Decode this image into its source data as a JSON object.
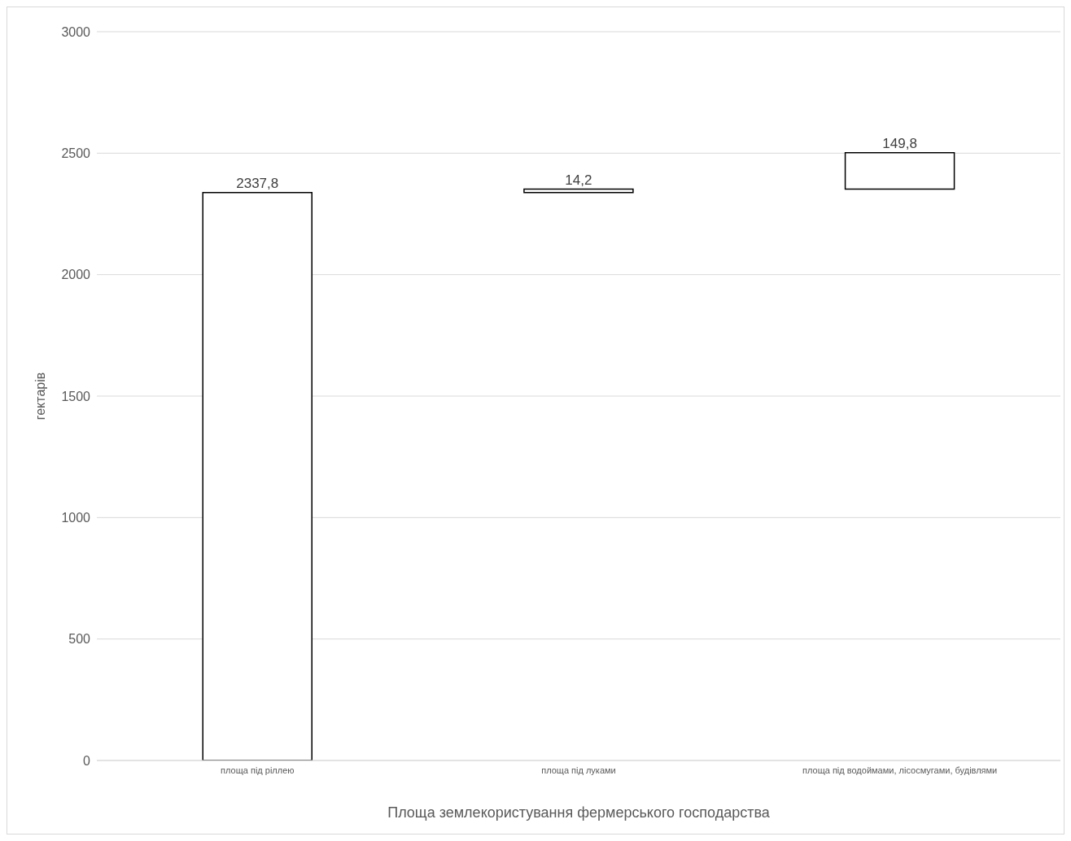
{
  "chart_data": {
    "type": "bar",
    "xlabel": "Площа землекористування фермерського господарства",
    "ylabel": "гектарів",
    "categories": [
      "площа під ріллею",
      "площа під луками",
      "площа під водоймами, лісосмугами, будівлями"
    ],
    "values": [
      2337.8,
      14.2,
      149.8
    ],
    "base": [
      0,
      2337.8,
      2352
    ],
    "value_labels": [
      "2337,8",
      "14,2",
      "149,8"
    ],
    "color": "#ffffff",
    "ylim": [
      0,
      3000
    ],
    "yticks": [
      0,
      500,
      1000,
      1500,
      2000,
      2500,
      3000
    ],
    "grid": "y"
  }
}
